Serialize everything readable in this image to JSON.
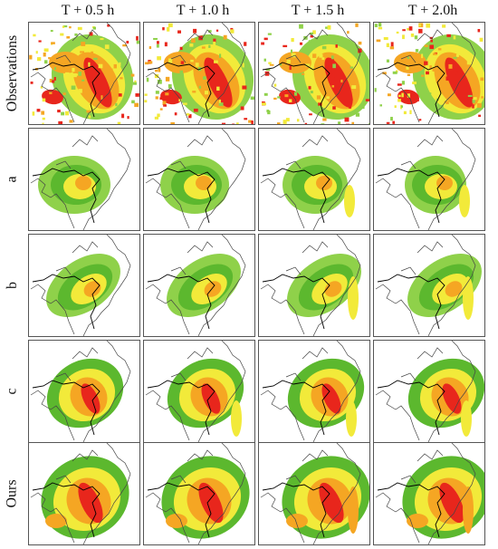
{
  "columns": [
    "T + 0.5 h",
    "T + 1.0 h",
    "T + 1.5 h",
    "T + 2.0h"
  ],
  "rows": [
    "Observations",
    "a",
    "b",
    "c",
    "Ours"
  ],
  "colors": {
    "light_green": "#8fd14a",
    "green": "#5cb82e",
    "yellow": "#f2ea3a",
    "orange": "#f5a623",
    "red": "#e8261c",
    "dark_red": "#c8102e",
    "coastline": "#444444",
    "border": "#000000"
  }
}
